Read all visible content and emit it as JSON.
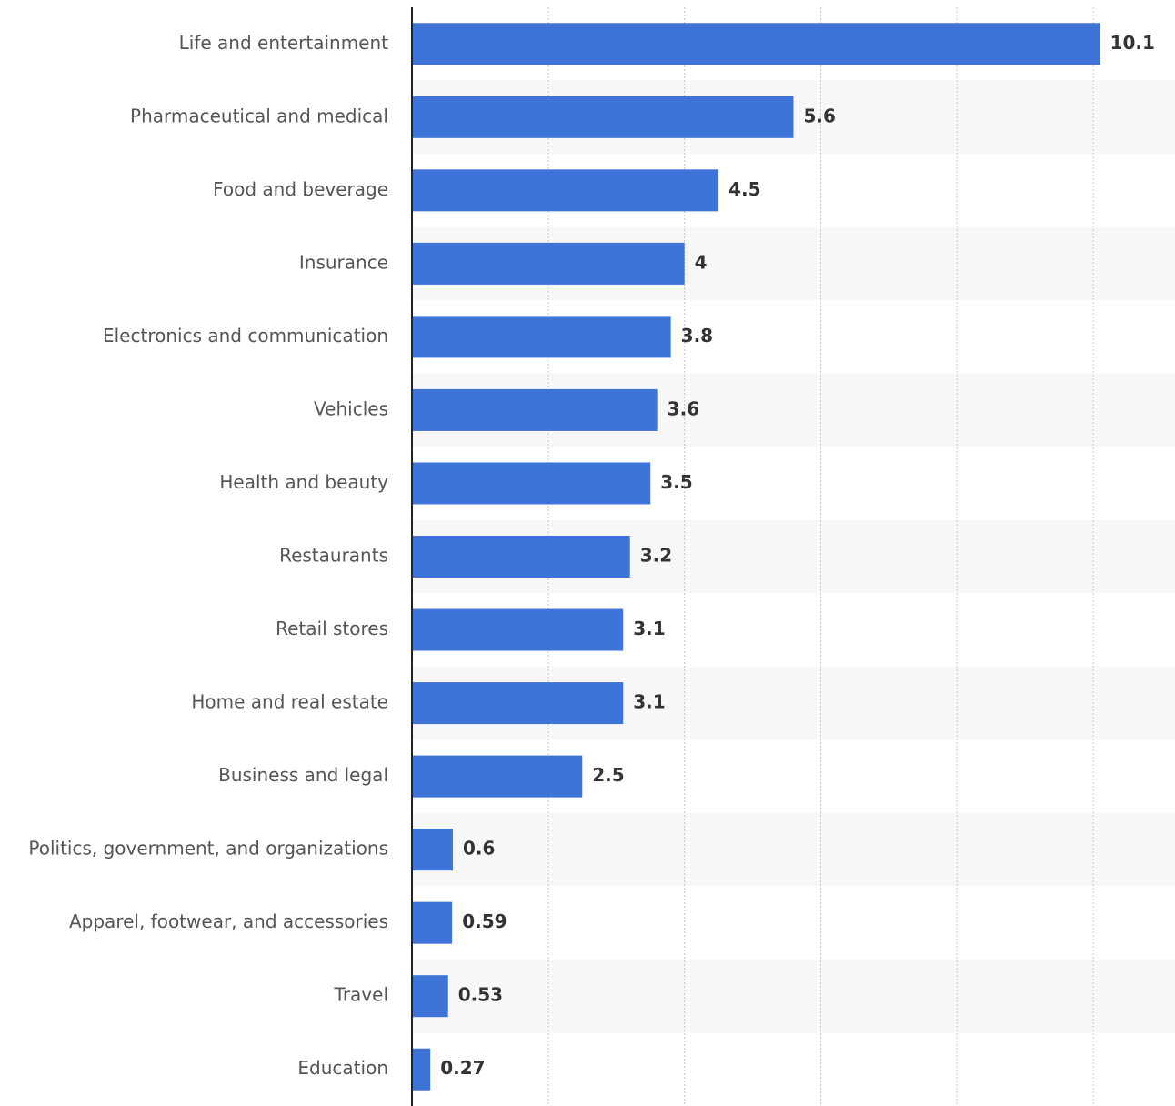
{
  "chart_data": {
    "type": "bar",
    "orientation": "horizontal",
    "categories": [
      "Life and entertainment",
      "Pharmaceutical and medical",
      "Food and beverage",
      "Insurance",
      "Electronics and communication",
      "Vehicles",
      "Health and beauty",
      "Restaurants",
      "Retail stores",
      "Home and real estate",
      "Business and legal",
      "Politics, government, and organizations",
      "Apparel, footwear, and accessories",
      "Travel",
      "Education"
    ],
    "values": [
      10.1,
      5.6,
      4.5,
      4,
      3.8,
      3.6,
      3.5,
      3.2,
      3.1,
      3.1,
      2.5,
      0.6,
      0.59,
      0.53,
      0.27
    ],
    "color": "#3e73d8",
    "xlim": [
      0,
      11.2
    ],
    "xticks": [
      2,
      4,
      6,
      8,
      10
    ],
    "grid": true
  }
}
